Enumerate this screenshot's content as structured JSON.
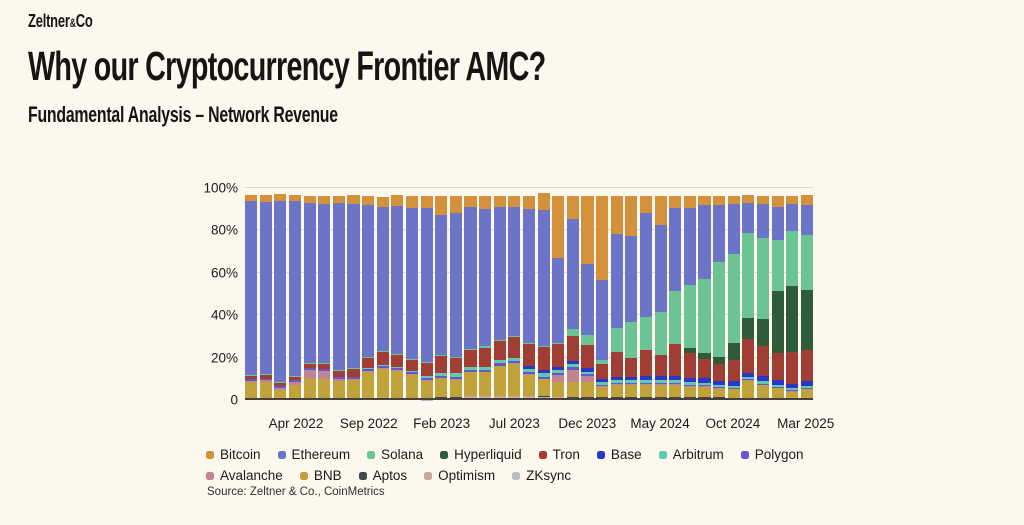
{
  "brand": {
    "logo_main": "Zeltner",
    "logo_amp": "&",
    "logo_co": "Co"
  },
  "header": {
    "title": "Why our Cryptocurrency Frontier AMC?",
    "subtitle": "Fundamental Analysis – Network Revenue"
  },
  "source_label": "Source: Zeltner & Co., CoinMetrics",
  "chart_data": {
    "type": "bar",
    "variant": "stacked-100-percent",
    "unit": "% of total network revenue",
    "grid": true,
    "legend_position": "bottom",
    "months": [
      "Jan 2022",
      "Feb 2022",
      "Mar 2022",
      "Apr 2022",
      "May 2022",
      "Jun 2022",
      "Jul 2022",
      "Aug 2022",
      "Sep 2022",
      "Oct 2022",
      "Nov 2022",
      "Dec 2022",
      "Jan 2023",
      "Feb 2023",
      "Mar 2023",
      "Apr 2023",
      "May 2023",
      "Jun 2023",
      "Jul 2023",
      "Aug 2023",
      "Sep 2023",
      "Oct 2023",
      "Nov 2023",
      "Dec 2023",
      "Jan 2024",
      "Feb 2024",
      "Mar 2024",
      "Apr 2024",
      "May 2024",
      "Jun 2024",
      "Jul 2024",
      "Aug 2024",
      "Sep 2024",
      "Oct 2024",
      "Nov 2024",
      "Dec 2024",
      "Jan 2025",
      "Feb 2025",
      "Mar 2025"
    ],
    "y_axis": {
      "min": 0,
      "max": 100,
      "ticks": [
        {
          "label": "100%",
          "value": 100
        },
        {
          "label": "80%",
          "value": 80
        },
        {
          "label": "60%",
          "value": 60
        },
        {
          "label": "40%",
          "value": 40
        },
        {
          "label": "20%",
          "value": 20
        },
        {
          "label": "0",
          "value": 0
        }
      ]
    },
    "x_ticks": [
      {
        "label": "Apr 2022",
        "month_index": 3
      },
      {
        "label": "Sep 2022",
        "month_index": 8
      },
      {
        "label": "Feb 2023",
        "month_index": 13
      },
      {
        "label": "Jul 2023",
        "month_index": 18
      },
      {
        "label": "Dec 2023",
        "month_index": 23
      },
      {
        "label": "May 2024",
        "month_index": 28
      },
      {
        "label": "Oct 2024",
        "month_index": 33
      },
      {
        "label": "Mar 2025",
        "month_index": 38
      }
    ],
    "legend_order": [
      "Bitcoin",
      "Ethereum",
      "Solana",
      "Hyperliquid",
      "Tron",
      "Base",
      "Arbitrum",
      "Polygon",
      "Avalanche",
      "BNB",
      "Aptos",
      "Optimism",
      "ZKsync"
    ],
    "stack_order_bottom_to_top": [
      "ZKsync",
      "Optimism",
      "Aptos",
      "BNB",
      "Avalanche",
      "Polygon",
      "Arbitrum",
      "Base",
      "Tron",
      "Hyperliquid",
      "Solana",
      "Ethereum",
      "Bitcoin"
    ],
    "series": {
      "Bitcoin": {
        "color": "#d2913a",
        "pattern": "dots",
        "values": [
          3,
          3,
          3,
          3,
          3,
          3.5,
          3.5,
          4,
          4.5,
          5,
          5,
          5.5,
          6,
          9,
          8,
          5,
          6,
          5,
          5,
          6,
          8,
          29,
          11,
          32,
          40,
          18,
          19,
          8,
          14,
          6,
          6,
          4,
          4,
          4,
          4,
          4,
          5,
          4,
          5
        ]
      },
      "Ethereum": {
        "color": "#6b74c6",
        "values": [
          82,
          81.5,
          85.5,
          82.5,
          75.5,
          75,
          78.5,
          77.5,
          71.5,
          68,
          70,
          71.5,
          72.5,
          66,
          68,
          67,
          65,
          63,
          61,
          63.5,
          64,
          40,
          52,
          33.5,
          37.5,
          44.5,
          40.5,
          49,
          41,
          39,
          36,
          35,
          27,
          23.5,
          14,
          16,
          16,
          12.5,
          14
        ]
      },
      "Solana": {
        "color": "#6cc493",
        "values": [
          0.5,
          0.5,
          0.5,
          0.5,
          0.5,
          0.5,
          0.5,
          0.5,
          0.5,
          0.5,
          0.5,
          0.5,
          0.5,
          0.5,
          0.5,
          0.5,
          0.5,
          0.5,
          0.5,
          0.5,
          0.5,
          0.5,
          3,
          5,
          2,
          11,
          17,
          16,
          20,
          25,
          30,
          35,
          45,
          42,
          40,
          38,
          24,
          26,
          26
        ]
      },
      "Hyperliquid": {
        "color": "#2e5b38",
        "values": [
          0,
          0,
          0,
          0,
          0,
          0,
          0,
          0,
          0,
          0,
          0,
          0,
          0,
          0,
          0,
          0,
          0,
          0,
          0,
          0,
          0,
          0,
          0,
          0,
          0,
          0,
          0,
          0,
          0,
          0,
          2,
          3,
          3,
          8,
          10,
          13,
          29,
          31,
          28
        ]
      },
      "Tron": {
        "color": "#a03e36",
        "values": [
          1.5,
          1.5,
          1.5,
          1.5,
          2,
          2.5,
          3,
          3.5,
          4.5,
          6,
          5.5,
          5,
          6,
          8,
          7,
          8,
          9,
          9,
          10,
          10,
          11,
          11,
          12,
          11,
          7,
          12,
          9,
          12,
          10,
          15,
          12,
          9,
          8,
          10,
          16,
          14,
          13,
          15,
          15
        ]
      },
      "Base": {
        "color": "#2b36c9",
        "values": [
          0,
          0,
          0,
          0,
          0,
          0,
          0,
          0,
          0,
          0,
          0,
          0,
          0,
          0,
          0,
          0,
          0,
          0,
          0,
          1.5,
          1.5,
          1.5,
          1.5,
          1.5,
          1.5,
          1.5,
          1.5,
          2,
          2,
          2,
          2,
          2,
          2,
          2,
          2,
          2.5,
          2,
          2,
          2
        ]
      },
      "Arbitrum": {
        "color": "#5fcbad",
        "values": [
          0,
          0,
          0,
          0,
          0,
          0,
          0,
          0,
          0.5,
          0.5,
          0.5,
          0.5,
          1,
          1.5,
          2,
          1.5,
          1.5,
          1.5,
          1.5,
          1.5,
          1.5,
          1.5,
          1.5,
          1.2,
          1.2,
          1.2,
          1.2,
          1.2,
          1.2,
          1.2,
          1.2,
          1,
          1,
          1,
          1,
          1,
          1,
          1,
          1
        ]
      },
      "Polygon": {
        "color": "#6657ce",
        "values": [
          0.8,
          0.8,
          0.8,
          0.8,
          0.8,
          0.8,
          0.8,
          1,
          1,
          1,
          1,
          1,
          1,
          1,
          1,
          1,
          1,
          1,
          1,
          1,
          1,
          1,
          1,
          0.8,
          0.6,
          0.6,
          0.6,
          0.6,
          0.6,
          0.6,
          0.6,
          0.6,
          0.6,
          0.5,
          0.5,
          0.5,
          0.5,
          0.5,
          0.5
        ]
      },
      "Avalanche": {
        "color": "#c08590",
        "values": [
          0.7,
          1,
          1,
          1.2,
          4.5,
          4,
          1.2,
          0.8,
          0.5,
          0.4,
          0.4,
          0.4,
          0.3,
          0.3,
          0.3,
          0.3,
          0.3,
          0.3,
          0.3,
          0.3,
          0.3,
          3,
          6,
          3,
          0.5,
          0.4,
          0.4,
          0.4,
          0.4,
          0.4,
          0.4,
          0.4,
          0.4,
          0.3,
          0.3,
          0.3,
          0.3,
          0.3,
          0.3
        ]
      },
      "BNB": {
        "color": "#c2a33b",
        "values": [
          8,
          8,
          4.5,
          7,
          9.5,
          9.5,
          8.5,
          9,
          13,
          14,
          13,
          11,
          8,
          9,
          8,
          11,
          11,
          14,
          15,
          10,
          8,
          7,
          7,
          7,
          5,
          6,
          6,
          6,
          6,
          6,
          5,
          5,
          4,
          4,
          8,
          6,
          4.5,
          3,
          4
        ]
      },
      "Aptos": {
        "color": "#41454c",
        "values": [
          0,
          0,
          0,
          0,
          0,
          0,
          0,
          0,
          0,
          0.2,
          0.3,
          0.3,
          0.3,
          0.3,
          0.3,
          0.3,
          0.3,
          0.3,
          0.3,
          0.3,
          0.3,
          0.3,
          0.3,
          0.3,
          0.3,
          0.3,
          0.3,
          0.3,
          0.3,
          0.3,
          0.3,
          0.3,
          0.3,
          0.3,
          0.3,
          0.3,
          0.3,
          0.3,
          0.3
        ]
      },
      "Optimism": {
        "color": "#c7a79e",
        "values": [
          0.3,
          0.3,
          0.3,
          0.3,
          0.3,
          0.3,
          0.3,
          0.3,
          0.3,
          0.4,
          0.4,
          0.5,
          0.6,
          0.6,
          0.6,
          0.7,
          0.7,
          0.7,
          0.7,
          0.7,
          0.7,
          0.7,
          0.6,
          0.6,
          0.5,
          0.5,
          0.5,
          0.5,
          0.5,
          0.5,
          0.5,
          0.5,
          0.5,
          0.4,
          0.4,
          0.4,
          0.4,
          0.4,
          0.4
        ]
      },
      "ZKsync": {
        "color": "#b9bdc1",
        "values": [
          0,
          0,
          0,
          0,
          0,
          0,
          0,
          0,
          0,
          0,
          0,
          0,
          0.2,
          0.3,
          0.5,
          1,
          1,
          1,
          1,
          1,
          0.8,
          0.6,
          0.5,
          0.5,
          0.4,
          0.4,
          0.4,
          0.4,
          0.4,
          0.4,
          0.4,
          0.4,
          0.4,
          0.3,
          0.3,
          0.3,
          0.3,
          0.3,
          0.3
        ]
      }
    }
  }
}
